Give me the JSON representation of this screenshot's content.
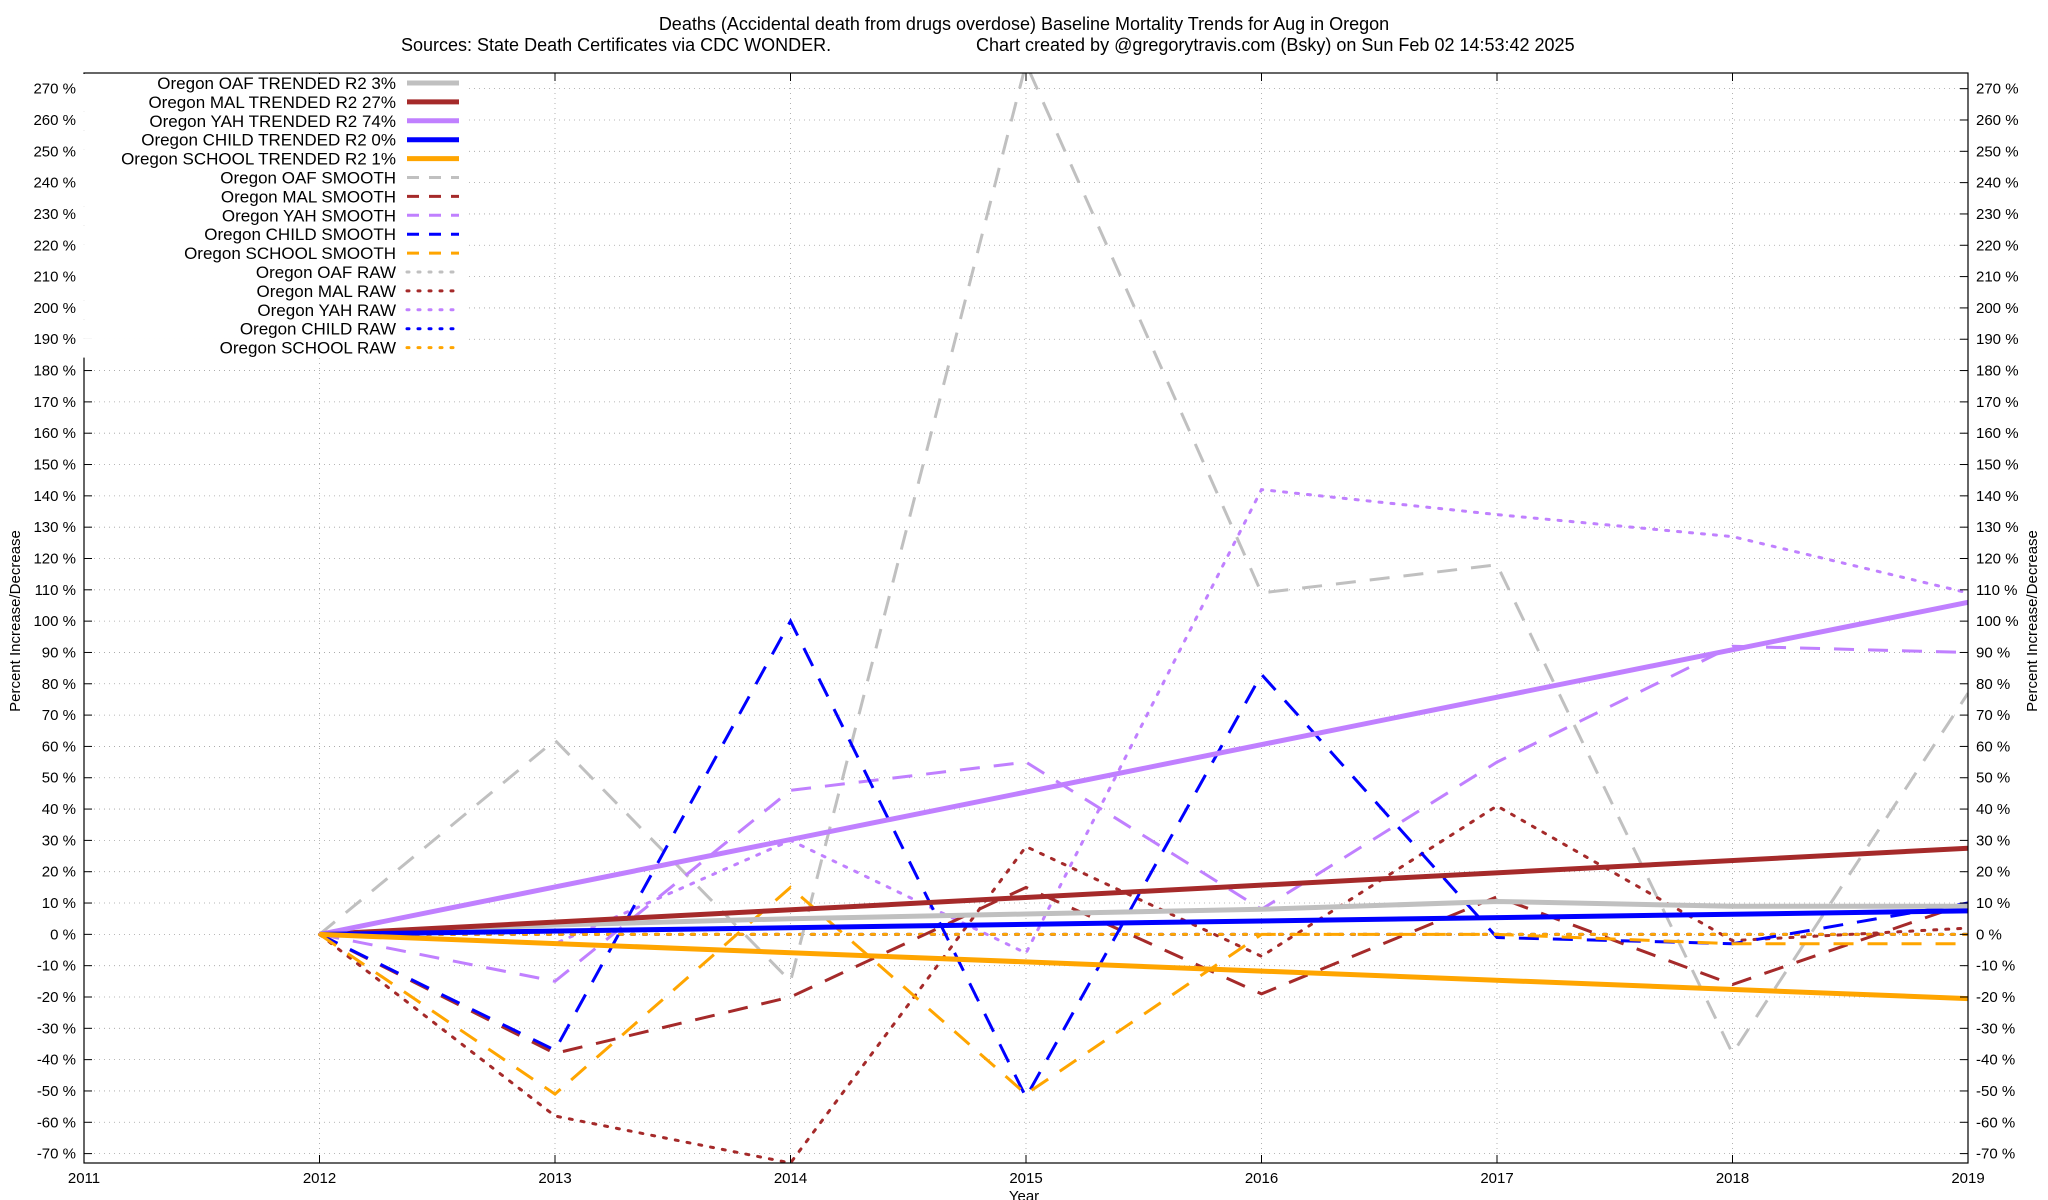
{
  "chart_data": {
    "type": "line",
    "title": "Deaths (Accidental death from drugs overdose)  Baseline Mortality Trends for Aug in Oregon",
    "subtitle_left": "Sources: State Death Certificates via CDC WONDER.",
    "subtitle_right": "Chart created by @gregorytravis.com (Bsky) on Sun Feb 02 14:53:42 2025",
    "xlabel": "Year",
    "ylabel": "Percent Increase/Decrease",
    "xlim": [
      2011,
      2019
    ],
    "ylim": [
      -73,
      275
    ],
    "x_ticks": [
      "2011",
      "2012",
      "2013",
      "2014",
      "2015",
      "2016",
      "2017",
      "2018",
      "2019"
    ],
    "y_ticks": [
      "270 %",
      "260 %",
      "250 %",
      "240 %",
      "230 %",
      "220 %",
      "210 %",
      "200 %",
      "190 %",
      "180 %",
      "170 %",
      "160 %",
      "150 %",
      "140 %",
      "130 %",
      "120 %",
      "110 %",
      "100 %",
      "90 %",
      "80 %",
      "70 %",
      "60 %",
      "50 %",
      "40 %",
      "30 %",
      "20 %",
      "10 %",
      "0 %",
      "-10 %",
      "-20 %",
      "-30 %",
      "-40 %",
      "-50 %",
      "-60 %",
      "-70 %"
    ],
    "grid": true,
    "legend_position": "top-left",
    "series": [
      {
        "name": "Oregon OAF TRENDED R2  3%",
        "style": "solid",
        "color": "#c0c0c0",
        "x": [
          2012,
          2013,
          2014,
          2015,
          2016,
          2017,
          2018,
          2019
        ],
        "values": [
          0,
          3,
          5,
          6.5,
          8,
          10.5,
          9,
          9
        ]
      },
      {
        "name": "Oregon MAL TRENDED R2  27%",
        "style": "solid",
        "color": "#a52a2a",
        "x": [
          2012,
          2019
        ],
        "values": [
          0,
          27.5
        ]
      },
      {
        "name": "Oregon YAH TRENDED R2  74%",
        "style": "solid",
        "color": "#c080ff",
        "x": [
          2012,
          2019
        ],
        "values": [
          0,
          106
        ]
      },
      {
        "name": "Oregon CHILD TRENDED R2  0%",
        "style": "solid",
        "color": "#0000ff",
        "x": [
          2012,
          2019
        ],
        "values": [
          0,
          7.5
        ]
      },
      {
        "name": "Oregon SCHOOL TRENDED R2  1%",
        "style": "solid",
        "color": "#ffa500",
        "x": [
          2012,
          2019
        ],
        "values": [
          0,
          -20.5
        ]
      },
      {
        "name": "Oregon OAF SMOOTH",
        "style": "dashed",
        "color": "#c0c0c0",
        "x": [
          2012,
          2013,
          2014,
          2015,
          2016,
          2017,
          2018,
          2019
        ],
        "values": [
          0,
          62,
          -15,
          278,
          109,
          118,
          -38,
          77
        ]
      },
      {
        "name": "Oregon MAL SMOOTH",
        "style": "dashed",
        "color": "#a52a2a",
        "x": [
          2012,
          2013,
          2014,
          2015,
          2016,
          2017,
          2018,
          2019
        ],
        "values": [
          0,
          -38,
          -20,
          15,
          -19,
          12,
          -16,
          10
        ]
      },
      {
        "name": "Oregon YAH SMOOTH",
        "style": "dashed",
        "color": "#c080ff",
        "x": [
          2012,
          2013,
          2014,
          2015,
          2016,
          2017,
          2018,
          2019
        ],
        "values": [
          0,
          -15,
          46,
          55,
          8,
          55,
          92,
          90
        ]
      },
      {
        "name": "Oregon CHILD SMOOTH",
        "style": "dashed",
        "color": "#0000ff",
        "x": [
          2012,
          2013,
          2014,
          2015,
          2016,
          2017,
          2018,
          2019
        ],
        "values": [
          0,
          -37,
          100,
          -52,
          83,
          -1,
          -3,
          10
        ]
      },
      {
        "name": "Oregon SCHOOL SMOOTH",
        "style": "dashed",
        "color": "#ffa500",
        "x": [
          2012,
          2013,
          2014,
          2015,
          2016,
          2017,
          2018,
          2019
        ],
        "values": [
          0,
          -51,
          15,
          -51,
          0,
          0,
          -3,
          -3
        ]
      },
      {
        "name": "Oregon OAF RAW",
        "style": "dotted",
        "color": "#c0c0c0",
        "x": [
          2012,
          2013,
          2014,
          2015,
          2016,
          2017,
          2018,
          2019
        ],
        "values": [
          0,
          0,
          0,
          0,
          0,
          0,
          0,
          0
        ]
      },
      {
        "name": "Oregon MAL RAW",
        "style": "dotted",
        "color": "#a52a2a",
        "x": [
          2012,
          2013,
          2014,
          2015,
          2016,
          2017,
          2018,
          2019
        ],
        "values": [
          0,
          -58,
          -73,
          28,
          -7,
          41,
          -2,
          2
        ]
      },
      {
        "name": "Oregon YAH RAW",
        "style": "dotted",
        "color": "#c080ff",
        "x": [
          2012,
          2013,
          2014,
          2015,
          2016,
          2017,
          2018,
          2019
        ],
        "values": [
          0,
          -3,
          30,
          -6,
          142,
          134,
          127,
          109
        ]
      },
      {
        "name": "Oregon CHILD RAW",
        "style": "dotted",
        "color": "#0000ff",
        "x": [
          2012,
          2013,
          2014,
          2015,
          2016,
          2017,
          2018,
          2019
        ],
        "values": [
          0,
          0,
          0,
          0,
          0,
          0,
          0,
          0
        ]
      },
      {
        "name": "Oregon SCHOOL RAW",
        "style": "dotted",
        "color": "#ffa500",
        "x": [
          2012,
          2013,
          2014,
          2015,
          2016,
          2017,
          2018,
          2019
        ],
        "values": [
          0,
          0,
          0,
          0,
          0,
          0,
          0,
          0
        ]
      }
    ]
  }
}
